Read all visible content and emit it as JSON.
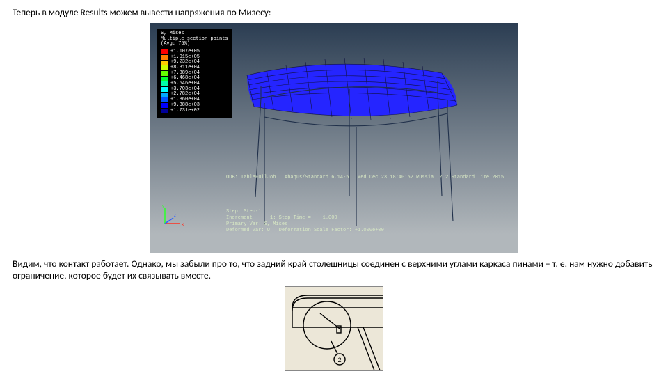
{
  "text": {
    "para1": "Теперь в модуле Results можем вывести напряжения по Мизесу:",
    "para2": "Видим, что контакт работает. Однако, мы забыли про то, что задний край столешницы соединен с верхними углами каркаса пинами – т. е. нам нужно добавить ограничение, которое будет их связывать вместе."
  },
  "legend": {
    "title": "S, Mises\nMultiple section points\n(Avg: 75%)",
    "rows": [
      {
        "color": "#ff0000",
        "label": "+1.107e+05"
      },
      {
        "color": "#ff7d00",
        "label": "+1.015e+05"
      },
      {
        "color": "#ffcc00",
        "label": "+9.232e+04"
      },
      {
        "color": "#ccff00",
        "label": "+8.311e+04"
      },
      {
        "color": "#66ff00",
        "label": "+7.389e+04"
      },
      {
        "color": "#00ff33",
        "label": "+6.468e+04"
      },
      {
        "color": "#00ffaa",
        "label": "+5.546e+04"
      },
      {
        "color": "#00ffff",
        "label": "+3.703e+04"
      },
      {
        "color": "#00aaff",
        "label": "+2.782e+04"
      },
      {
        "color": "#0055ff",
        "label": "+1.860e+04"
      },
      {
        "color": "#0000ff",
        "label": "+9.388e+03"
      },
      {
        "color": "#000099",
        "label": "+1.731e+02"
      }
    ]
  },
  "triad": {
    "x_color": "#ff3020",
    "y_color": "#30ff30",
    "z_color": "#3060ff",
    "labels": {
      "x": "x",
      "y": "y",
      "z": "z"
    }
  },
  "status": {
    "line1": "ODB: TableFullJob   Abaqus/Standard 6.14-5   Wed Dec 23 18:40:52 Russia TZ 2 Standard Time 2015",
    "line2": "Step: Step-1\nIncrement      1: Step Time =    1.000\nPrimary Var: S, Mises\nDeformed Var: U   Deformation Scale Factor: +1.000e+00"
  },
  "mesh": {
    "surface_fill": "#2525ff",
    "wire_color": "#101040",
    "edge_color": "#90a8c8",
    "legs_color": "#20304a"
  },
  "illustration": {
    "background": "#ece7d8",
    "line_color": "#000000",
    "circle_label": "2"
  }
}
